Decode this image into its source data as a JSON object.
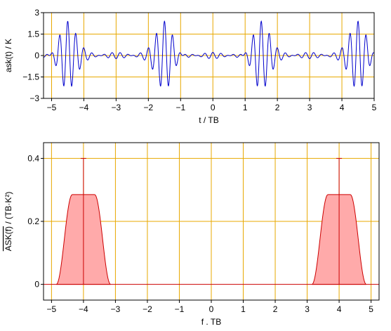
{
  "chart_data": [
    {
      "type": "line",
      "xlabel": "t / TB",
      "ylabel": "ask(t) / K",
      "xlim": [
        -5.25,
        5.0
      ],
      "ylim": [
        -3,
        3
      ],
      "xticks": [
        -5,
        -4,
        -3,
        -2,
        -1,
        0,
        1,
        2,
        3,
        4,
        5
      ],
      "yticks": [
        -3,
        -1.5,
        0,
        1.5,
        3
      ],
      "ytick_labels": [
        "−3",
        "−1.5",
        "0",
        "1.5",
        "3"
      ],
      "xtick_labels": [
        "−5",
        "−4",
        "−3",
        "−2",
        "−1",
        "0",
        "1",
        "2",
        "3",
        "4",
        "5"
      ],
      "grid": true,
      "colors": {
        "line": "#0000cc",
        "grid": "#e8a800",
        "axis": "#000000"
      },
      "carrier_periods_per_TB": 4,
      "symbols": [
        {
          "t_center": -4.5,
          "bit": 1
        },
        {
          "t_center": -3.5,
          "bit": 0
        },
        {
          "t_center": -2.5,
          "bit": 0
        },
        {
          "t_center": -1.5,
          "bit": 1
        },
        {
          "t_center": -0.5,
          "bit": 0
        },
        {
          "t_center": 0.5,
          "bit": 0
        },
        {
          "t_center": 1.5,
          "bit": 1
        },
        {
          "t_center": 2.5,
          "bit": 0
        },
        {
          "t_center": 3.5,
          "bit": 0
        },
        {
          "t_center": 4.5,
          "bit": 1
        }
      ],
      "symbol_amplitude": 2.4
    },
    {
      "type": "area",
      "xlabel": "f . TB",
      "ylabel": "ASK(f) / (TB·K²)",
      "ylabel_overlined": "ASK(f)",
      "ylabel_rest": " / (TB·K²)",
      "xlim": [
        -5.25,
        5.25
      ],
      "ylim": [
        -0.05,
        0.45
      ],
      "xticks": [
        -5,
        -4,
        -3,
        -2,
        -1,
        0,
        1,
        2,
        3,
        4,
        5
      ],
      "xtick_labels": [
        "−5",
        "−4",
        "−3",
        "−2",
        "−1",
        "0",
        "1",
        "2",
        "3",
        "4",
        "5"
      ],
      "yticks": [
        0,
        0.2,
        0.4
      ],
      "ytick_labels": [
        "0",
        "0.2",
        "0.4"
      ],
      "grid": true,
      "colors": {
        "line": "#cc0000",
        "fill": "#ffaaaa",
        "grid": "#e8a800",
        "axis": "#000000"
      },
      "lobes": [
        {
          "center": -4.0,
          "plateau": 0.285,
          "half_width_flat": 0.35,
          "rolloff": 0.5
        },
        {
          "center": 4.0,
          "plateau": 0.285,
          "half_width_flat": 0.35,
          "rolloff": 0.5
        }
      ],
      "dirac_impulses": [
        {
          "f": -4.0,
          "height": 0.4
        },
        {
          "f": 4.0,
          "height": 0.4
        }
      ]
    }
  ]
}
